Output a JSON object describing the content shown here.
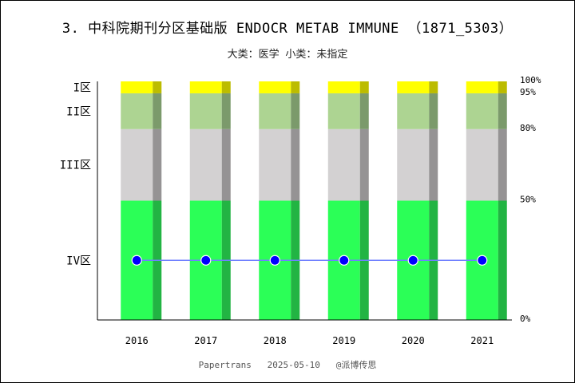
{
  "title": "3. 中科院期刊分区基础版 ENDOCR METAB IMMUNE （1871_5303）",
  "subtitle": "大类：医学 小类：未指定",
  "footer": "Papertrans   2025-05-10   @派博传思",
  "colors": {
    "zone1": "#ffff00",
    "zone1_shade": "#bcbc00",
    "zone2": "#add492",
    "zone2_shade": "#7b9a6b",
    "zone3": "#d3d1d2",
    "zone3_shade": "#959394",
    "zone4": "#2bff57",
    "zone4_shade": "#22b443",
    "line": "#6f7fff",
    "marker": "#0000ff"
  },
  "chart_data": {
    "type": "bar",
    "categories": [
      "2016",
      "2017",
      "2018",
      "2019",
      "2020",
      "2021"
    ],
    "zone_labels": [
      "I区",
      "II区",
      "III区",
      "IV区"
    ],
    "zone_bands": [
      {
        "name": "IV区",
        "from": 0,
        "to": 50
      },
      {
        "name": "III区",
        "from": 50,
        "to": 80
      },
      {
        "name": "II区",
        "from": 80,
        "to": 95
      },
      {
        "name": "I区",
        "from": 95,
        "to": 100
      }
    ],
    "percent_ticks": [
      "100%",
      "95%",
      "80%",
      "50%",
      "0%"
    ],
    "percent_tick_values": [
      100,
      95,
      80,
      50,
      0
    ],
    "zone_label_values": [
      97.5,
      87.5,
      65,
      25
    ],
    "series": [
      {
        "values": [
          25,
          25,
          25,
          25,
          25,
          25
        ]
      }
    ],
    "ylim": [
      0,
      100
    ]
  }
}
